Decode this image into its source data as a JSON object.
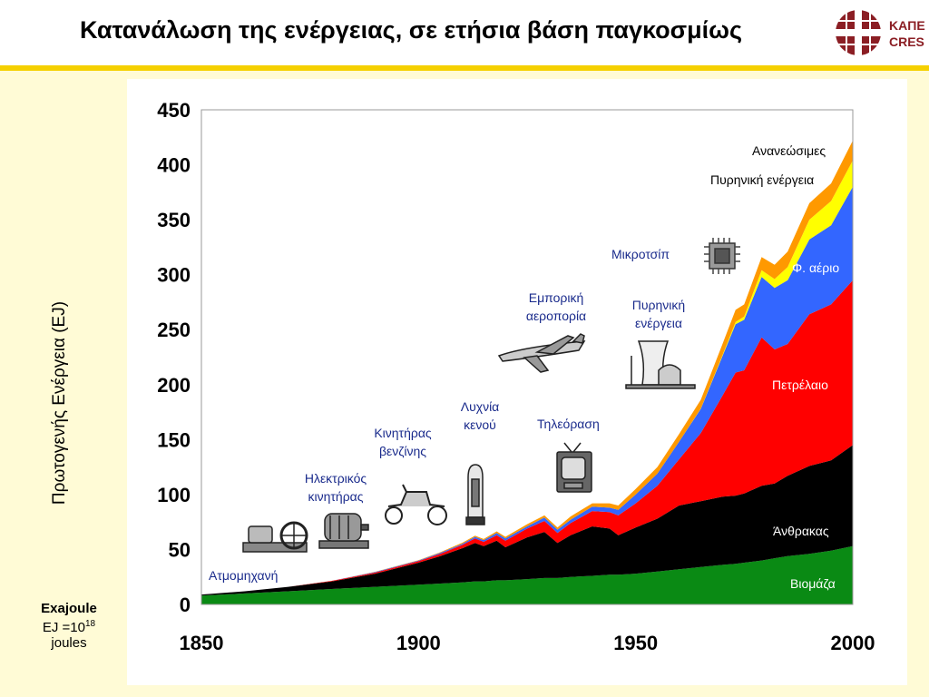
{
  "slide": {
    "title": "Κατανάλωση της ενέργειας, σε ετήσια βάση παγκοσμίως",
    "logo": {
      "line1": "ΚΑΠΕ",
      "line2": "CRES",
      "color": "#8b1e24"
    },
    "accent": "#f5d000",
    "unit": {
      "name": "Exajoule",
      "def_prefix": "EJ =10",
      "def_exp": "18",
      "def_suffix": "joules"
    }
  },
  "inventions": [
    {
      "name": "steam-engine-label",
      "text": "Ατμομηχανή",
      "icon": "steam-engine-icon"
    },
    {
      "name": "electric-motor-label",
      "text": "Ηλεκτρικός κινητήρας",
      "icon": "electric-motor-icon"
    },
    {
      "name": "petrol-engine-label",
      "text": "Κινητήρας βενζίνης",
      "icon": "vintage-car-icon"
    },
    {
      "name": "vacuum-tube-label",
      "text": "Λυχνία κενού",
      "icon": "vacuum-tube-icon"
    },
    {
      "name": "television-label",
      "text": "Τηλεόραση",
      "icon": "television-icon"
    },
    {
      "name": "aviation-label",
      "text": "Εμπορική αεροπορία",
      "icon": "airplane-icon"
    },
    {
      "name": "nuclear-label",
      "text": "Πυρηνική ενέργεια",
      "icon": "nuclear-plant-icon"
    },
    {
      "name": "microchip-label",
      "text": "Μικροτσίπ",
      "icon": "microchip-icon"
    }
  ],
  "chart_data": {
    "type": "area",
    "stacked": true,
    "title": "Κατανάλωση της ενέργειας, σε ετήσια βάση παγκοσμίως",
    "ylabel": "Πρωτογενής Ενέργεια (EJ)",
    "xlabel": "",
    "xlim": [
      1850,
      2000
    ],
    "ylim": [
      0,
      450
    ],
    "xticks": [
      1850,
      1900,
      1950,
      2000
    ],
    "yticks": [
      0,
      50,
      100,
      150,
      200,
      250,
      300,
      350,
      400,
      450
    ],
    "grid": false,
    "x": [
      1850,
      1860,
      1870,
      1880,
      1890,
      1900,
      1905,
      1910,
      1913,
      1915,
      1918,
      1920,
      1925,
      1929,
      1932,
      1935,
      1940,
      1944,
      1946,
      1950,
      1955,
      1960,
      1965,
      1970,
      1973,
      1975,
      1979,
      1982,
      1985,
      1990,
      1995,
      2000
    ],
    "series": [
      {
        "name": "Βιομάζα",
        "color": "#0a8a14",
        "values": [
          8,
          10,
          12,
          14,
          16,
          18,
          19,
          20,
          21,
          21,
          22,
          22,
          23,
          24,
          24,
          25,
          26,
          27,
          27,
          28,
          30,
          32,
          34,
          36,
          37,
          38,
          40,
          42,
          44,
          46,
          49,
          53
        ]
      },
      {
        "name": "Άνθρακας",
        "color": "#000000",
        "values": [
          1,
          2,
          4,
          7,
          12,
          20,
          25,
          31,
          35,
          32,
          36,
          30,
          38,
          42,
          32,
          38,
          45,
          42,
          36,
          42,
          48,
          58,
          60,
          62,
          62,
          63,
          68,
          68,
          73,
          80,
          82,
          92
        ]
      },
      {
        "name": "Πετρέλαιο",
        "color": "#ff0000",
        "values": [
          0,
          0,
          0,
          0.5,
          1,
          1.5,
          2,
          3,
          4,
          4,
          5,
          6,
          8,
          10,
          9,
          11,
          14,
          15,
          18,
          22,
          30,
          42,
          62,
          92,
          112,
          112,
          135,
          122,
          120,
          138,
          142,
          150
        ]
      },
      {
        "name": "Φ. αέριο",
        "color": "#3366ff",
        "values": [
          0,
          0,
          0,
          0,
          0.5,
          0.5,
          1,
          1,
          1.5,
          1.5,
          2,
          2,
          2,
          3,
          3,
          3,
          4,
          4,
          5,
          8,
          11,
          16,
          22,
          36,
          44,
          46,
          55,
          56,
          58,
          68,
          72,
          85
        ]
      },
      {
        "name": "Πυρηνική ενέργεια",
        "color": "#ffff00",
        "values": [
          0,
          0,
          0,
          0,
          0,
          0,
          0,
          0,
          0,
          0,
          0,
          0,
          0,
          0,
          0,
          0,
          0,
          0,
          0,
          0,
          0,
          0,
          0.3,
          1,
          2,
          3,
          6,
          8,
          12,
          18,
          22,
          24
        ]
      },
      {
        "name": "Ανανεώσιμες",
        "color": "#ff9900",
        "values": [
          0,
          0,
          0,
          0,
          0.2,
          0.3,
          0.5,
          1,
          1,
          1,
          1.5,
          1.5,
          2,
          2,
          2,
          3,
          3,
          4,
          4,
          5,
          6,
          7,
          8,
          10,
          11,
          11,
          12,
          13,
          14,
          15,
          16,
          18
        ]
      }
    ],
    "xy_geom_units": "px"
  }
}
